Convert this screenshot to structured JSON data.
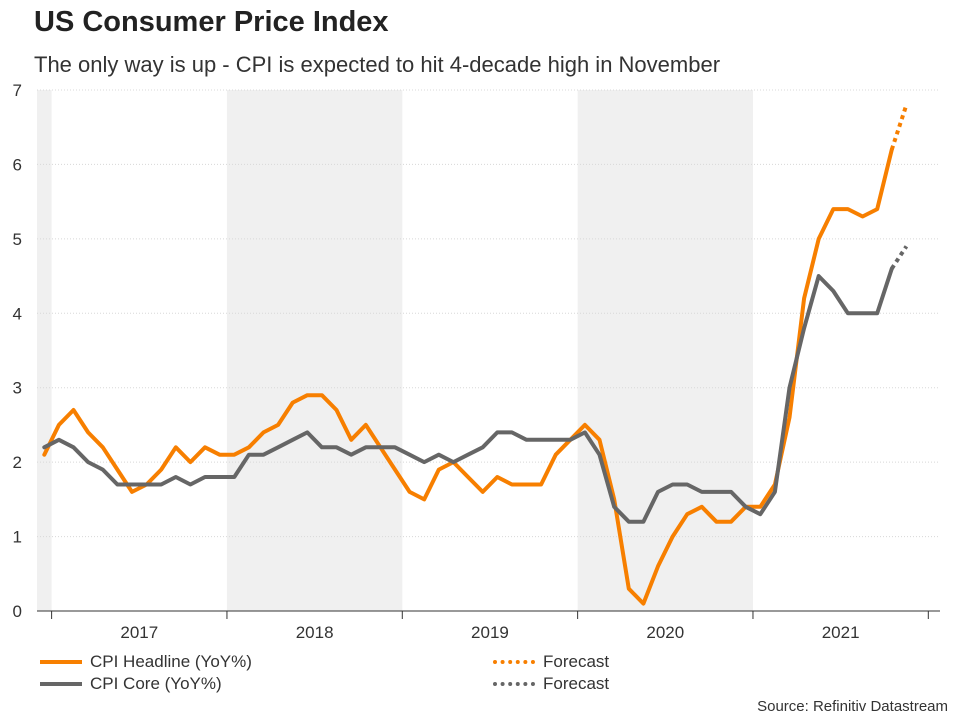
{
  "header": {
    "title": "US Consumer Price Index",
    "subtitle": "The only way is up - CPI is expected to hit 4-decade high in November"
  },
  "footer": {
    "source": "Source: Refinitiv Datastream"
  },
  "chart_data": {
    "type": "line",
    "title": "US Consumer Price Index",
    "subtitle": "The only way is up - CPI is expected to hit 4-decade high in November",
    "xlabel": "",
    "ylabel": "",
    "ylim": [
      0,
      7
    ],
    "yticks": [
      0,
      1,
      2,
      3,
      4,
      5,
      6,
      7
    ],
    "grid": true,
    "legend": "bottom",
    "x_start": "2016-12",
    "x_unit": "month",
    "year_labels": [
      {
        "label": "2017",
        "index": 6.5
      },
      {
        "label": "2018",
        "index": 18.5
      },
      {
        "label": "2019",
        "index": 30.5
      },
      {
        "label": "2020",
        "index": 42.5
      },
      {
        "label": "2021",
        "index": 54.5
      }
    ],
    "year_boundaries": [
      0.5,
      12.5,
      24.5,
      36.5,
      48.5,
      60.5
    ],
    "shaded_ranges": [
      [
        -0.5,
        0.5
      ],
      [
        12.5,
        24.5
      ],
      [
        36.5,
        48.5
      ]
    ],
    "series": [
      {
        "name": "CPI Headline (YoY%)",
        "color": "#f77f00",
        "style": "solid",
        "start_index": 0,
        "values": [
          2.1,
          2.5,
          2.7,
          2.4,
          2.2,
          1.9,
          1.6,
          1.7,
          1.9,
          2.2,
          2.0,
          2.2,
          2.1,
          2.1,
          2.2,
          2.4,
          2.5,
          2.8,
          2.9,
          2.9,
          2.7,
          2.3,
          2.5,
          2.2,
          1.9,
          1.6,
          1.5,
          1.9,
          2.0,
          1.8,
          1.6,
          1.8,
          1.7,
          1.7,
          1.7,
          2.1,
          2.3,
          2.5,
          2.3,
          1.5,
          0.3,
          0.1,
          0.6,
          1.0,
          1.3,
          1.4,
          1.2,
          1.2,
          1.4,
          1.4,
          1.7,
          2.6,
          4.2,
          5.0,
          5.4,
          5.4,
          5.3,
          5.4,
          6.2
        ]
      },
      {
        "name": "Forecast",
        "color": "#f77f00",
        "style": "dotted",
        "start_index": 58,
        "values": [
          6.2,
          6.8
        ]
      },
      {
        "name": "CPI Core (YoY%)",
        "color": "#666666",
        "style": "solid",
        "start_index": 0,
        "values": [
          2.2,
          2.3,
          2.2,
          2.0,
          1.9,
          1.7,
          1.7,
          1.7,
          1.7,
          1.8,
          1.7,
          1.8,
          1.8,
          1.8,
          2.1,
          2.1,
          2.2,
          2.3,
          2.4,
          2.2,
          2.2,
          2.1,
          2.2,
          2.2,
          2.2,
          2.1,
          2.0,
          2.1,
          2.0,
          2.1,
          2.2,
          2.4,
          2.4,
          2.3,
          2.3,
          2.3,
          2.3,
          2.4,
          2.1,
          1.4,
          1.2,
          1.2,
          1.6,
          1.7,
          1.7,
          1.6,
          1.6,
          1.6,
          1.4,
          1.3,
          1.6,
          3.0,
          3.8,
          4.5,
          4.3,
          4.0,
          4.0,
          4.0,
          4.6
        ]
      },
      {
        "name": "Forecast",
        "color": "#666666",
        "style": "dotted",
        "start_index": 58,
        "values": [
          4.6,
          4.9
        ]
      }
    ]
  }
}
